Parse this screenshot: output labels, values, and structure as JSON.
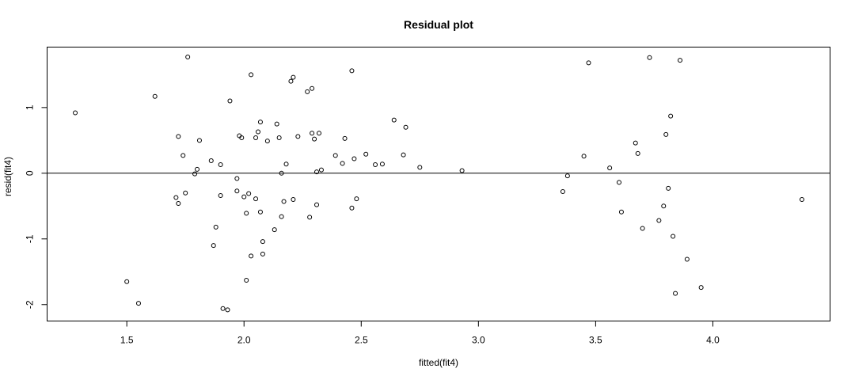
{
  "chart_data": {
    "type": "scatter",
    "title": "Residual plot",
    "xlabel": "fitted(fit4)",
    "ylabel": "resid(fit4)",
    "xlim": [
      1.16,
      4.5
    ],
    "ylim": [
      -2.25,
      1.92
    ],
    "x_ticks": [
      1.5,
      2.0,
      2.5,
      3.0,
      3.5,
      4.0
    ],
    "x_tick_labels": [
      "1.5",
      "2.0",
      "2.5",
      "3.0",
      "3.5",
      "4.0"
    ],
    "y_ticks": [
      -2,
      -1,
      0,
      1
    ],
    "y_tick_labels": [
      "-2",
      "-1",
      "0",
      "1"
    ],
    "reference_line_y": 0,
    "grid": false,
    "points": [
      {
        "x": 1.28,
        "y": 0.92
      },
      {
        "x": 1.5,
        "y": -1.65
      },
      {
        "x": 1.55,
        "y": -1.98
      },
      {
        "x": 1.62,
        "y": 1.17
      },
      {
        "x": 1.71,
        "y": -0.37
      },
      {
        "x": 1.72,
        "y": 0.56
      },
      {
        "x": 1.72,
        "y": -0.46
      },
      {
        "x": 1.74,
        "y": 0.27
      },
      {
        "x": 1.75,
        "y": -0.3
      },
      {
        "x": 1.76,
        "y": 1.77
      },
      {
        "x": 1.79,
        "y": -0.01
      },
      {
        "x": 1.8,
        "y": 0.06
      },
      {
        "x": 1.81,
        "y": 0.5
      },
      {
        "x": 1.86,
        "y": 0.19
      },
      {
        "x": 1.87,
        "y": -1.1
      },
      {
        "x": 1.88,
        "y": -0.82
      },
      {
        "x": 1.9,
        "y": 0.13
      },
      {
        "x": 1.9,
        "y": -0.34
      },
      {
        "x": 1.91,
        "y": -2.06
      },
      {
        "x": 1.93,
        "y": -2.08
      },
      {
        "x": 1.94,
        "y": 1.1
      },
      {
        "x": 1.97,
        "y": -0.27
      },
      {
        "x": 1.97,
        "y": -0.08
      },
      {
        "x": 1.98,
        "y": 0.57
      },
      {
        "x": 1.99,
        "y": 0.54
      },
      {
        "x": 2.0,
        "y": -0.36
      },
      {
        "x": 2.01,
        "y": -1.63
      },
      {
        "x": 2.01,
        "y": -0.61
      },
      {
        "x": 2.02,
        "y": -0.31
      },
      {
        "x": 2.03,
        "y": 1.5
      },
      {
        "x": 2.03,
        "y": -1.26
      },
      {
        "x": 2.05,
        "y": 0.54
      },
      {
        "x": 2.05,
        "y": -0.39
      },
      {
        "x": 2.06,
        "y": 0.63
      },
      {
        "x": 2.07,
        "y": 0.78
      },
      {
        "x": 2.07,
        "y": -0.59
      },
      {
        "x": 2.08,
        "y": -1.04
      },
      {
        "x": 2.08,
        "y": -1.23
      },
      {
        "x": 2.1,
        "y": 0.49
      },
      {
        "x": 2.13,
        "y": -0.86
      },
      {
        "x": 2.14,
        "y": 0.75
      },
      {
        "x": 2.15,
        "y": 0.54
      },
      {
        "x": 2.16,
        "y": -0.66
      },
      {
        "x": 2.16,
        "y": 0.0
      },
      {
        "x": 2.17,
        "y": -0.43
      },
      {
        "x": 2.18,
        "y": 0.14
      },
      {
        "x": 2.2,
        "y": 1.4
      },
      {
        "x": 2.21,
        "y": 1.46
      },
      {
        "x": 2.21,
        "y": -0.4
      },
      {
        "x": 2.23,
        "y": 0.56
      },
      {
        "x": 2.27,
        "y": 1.24
      },
      {
        "x": 2.28,
        "y": -0.67
      },
      {
        "x": 2.29,
        "y": 1.29
      },
      {
        "x": 2.29,
        "y": 0.61
      },
      {
        "x": 2.3,
        "y": 0.52
      },
      {
        "x": 2.31,
        "y": 0.02
      },
      {
        "x": 2.31,
        "y": -0.48
      },
      {
        "x": 2.32,
        "y": 0.61
      },
      {
        "x": 2.33,
        "y": 0.05
      },
      {
        "x": 2.39,
        "y": 0.27
      },
      {
        "x": 2.42,
        "y": 0.15
      },
      {
        "x": 2.43,
        "y": 0.53
      },
      {
        "x": 2.46,
        "y": 1.56
      },
      {
        "x": 2.46,
        "y": -0.53
      },
      {
        "x": 2.47,
        "y": 0.22
      },
      {
        "x": 2.48,
        "y": -0.39
      },
      {
        "x": 2.52,
        "y": 0.29
      },
      {
        "x": 2.56,
        "y": 0.13
      },
      {
        "x": 2.59,
        "y": 0.14
      },
      {
        "x": 2.64,
        "y": 0.81
      },
      {
        "x": 2.68,
        "y": 0.28
      },
      {
        "x": 2.69,
        "y": 0.7
      },
      {
        "x": 2.75,
        "y": 0.09
      },
      {
        "x": 2.93,
        "y": 0.04
      },
      {
        "x": 3.36,
        "y": -0.28
      },
      {
        "x": 3.38,
        "y": -0.04
      },
      {
        "x": 3.45,
        "y": 0.26
      },
      {
        "x": 3.47,
        "y": 1.68
      },
      {
        "x": 3.56,
        "y": 0.08
      },
      {
        "x": 3.6,
        "y": -0.14
      },
      {
        "x": 3.61,
        "y": -0.59
      },
      {
        "x": 3.67,
        "y": 0.46
      },
      {
        "x": 3.68,
        "y": 0.3
      },
      {
        "x": 3.7,
        "y": -0.84
      },
      {
        "x": 3.73,
        "y": 1.76
      },
      {
        "x": 3.77,
        "y": -0.72
      },
      {
        "x": 3.79,
        "y": -0.5
      },
      {
        "x": 3.8,
        "y": 0.59
      },
      {
        "x": 3.81,
        "y": -0.23
      },
      {
        "x": 3.82,
        "y": 0.87
      },
      {
        "x": 3.83,
        "y": -0.96
      },
      {
        "x": 3.84,
        "y": -1.83
      },
      {
        "x": 3.86,
        "y": 1.72
      },
      {
        "x": 3.89,
        "y": -1.31
      },
      {
        "x": 3.95,
        "y": -1.74
      },
      {
        "x": 4.38,
        "y": -0.4
      }
    ]
  }
}
